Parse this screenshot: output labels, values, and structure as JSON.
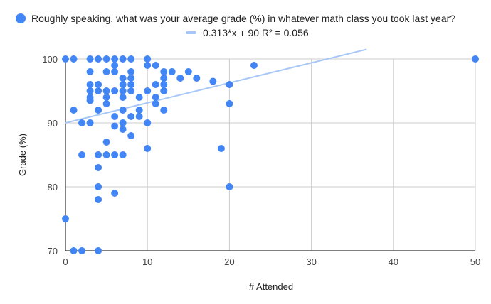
{
  "chart_data": {
    "type": "scatter",
    "xlabel": "# Attended",
    "ylabel": "Grade (%)",
    "xlim": [
      0,
      50
    ],
    "ylim": [
      70,
      100
    ],
    "x_ticks": [
      "0",
      "10",
      "20",
      "30",
      "40",
      "50"
    ],
    "y_ticks": [
      "70",
      "80",
      "90",
      "100"
    ],
    "grid": true,
    "legend_position": "top",
    "series": [
      {
        "name": "Roughly speaking, what was your average grade (%) in whatever math class you took last year?",
        "color": "#4285f4",
        "points": [
          [
            0,
            100
          ],
          [
            1,
            100
          ],
          [
            3,
            100
          ],
          [
            4,
            100
          ],
          [
            5,
            100
          ],
          [
            6,
            100
          ],
          [
            7,
            100
          ],
          [
            8,
            100
          ],
          [
            10,
            100
          ],
          [
            6,
            99
          ],
          [
            10,
            99
          ],
          [
            11,
            99
          ],
          [
            23,
            99
          ],
          [
            3,
            98
          ],
          [
            5,
            98
          ],
          [
            6,
            98
          ],
          [
            8,
            98
          ],
          [
            12,
            98
          ],
          [
            13,
            98
          ],
          [
            15,
            98
          ],
          [
            7,
            97
          ],
          [
            8,
            97
          ],
          [
            12,
            97
          ],
          [
            14,
            97
          ],
          [
            16,
            97
          ],
          [
            3,
            96
          ],
          [
            4,
            96
          ],
          [
            7,
            96
          ],
          [
            8,
            96
          ],
          [
            11,
            96
          ],
          [
            12,
            96
          ],
          [
            18,
            96.5
          ],
          [
            20,
            96
          ],
          [
            3,
            95
          ],
          [
            4,
            95
          ],
          [
            5,
            95
          ],
          [
            6,
            95
          ],
          [
            7,
            95
          ],
          [
            8,
            95
          ],
          [
            10,
            95
          ],
          [
            12,
            95
          ],
          [
            3,
            94
          ],
          [
            5,
            94
          ],
          [
            7,
            94
          ],
          [
            9,
            94
          ],
          [
            11,
            94
          ],
          [
            3,
            93.5
          ],
          [
            5,
            93
          ],
          [
            11,
            93
          ],
          [
            20,
            93
          ],
          [
            1,
            92
          ],
          [
            4,
            92
          ],
          [
            7,
            92
          ],
          [
            9,
            92
          ],
          [
            12,
            92
          ],
          [
            6,
            91
          ],
          [
            8,
            91
          ],
          [
            9,
            91
          ],
          [
            2,
            90
          ],
          [
            3,
            90
          ],
          [
            6,
            89.5
          ],
          [
            7,
            90
          ],
          [
            7,
            89
          ],
          [
            10,
            90
          ],
          [
            8,
            88
          ],
          [
            5,
            87
          ],
          [
            10,
            86
          ],
          [
            19,
            86
          ],
          [
            2,
            85
          ],
          [
            4,
            85
          ],
          [
            5,
            85
          ],
          [
            6,
            85
          ],
          [
            7,
            85
          ],
          [
            4,
            83
          ],
          [
            4,
            80
          ],
          [
            20,
            80
          ],
          [
            6,
            79
          ],
          [
            4,
            78
          ],
          [
            0,
            75
          ],
          [
            1,
            70
          ],
          [
            2,
            70
          ],
          [
            4,
            70
          ],
          [
            50,
            100
          ]
        ]
      }
    ],
    "trendline": {
      "label": "0.313*x + 90 R² = 0.056",
      "slope": 0.313,
      "intercept": 90,
      "color": "#a7c7f7"
    }
  }
}
